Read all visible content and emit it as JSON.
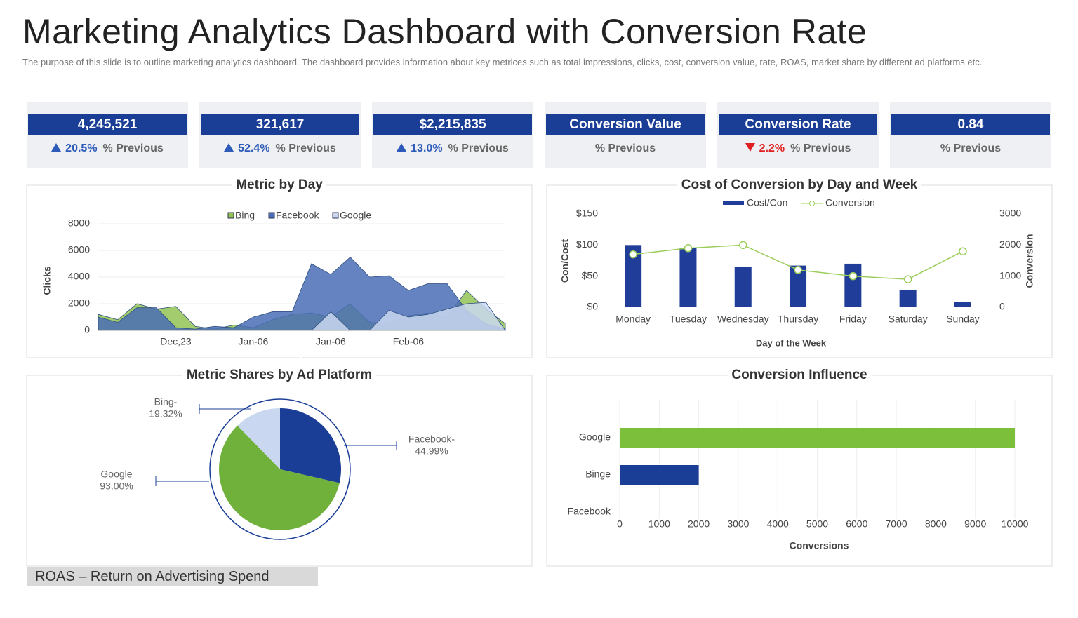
{
  "header": {
    "title": "Marketing Analytics Dashboard with Conversion Rate",
    "subtitle": "The purpose of this slide is to outline marketing analytics dashboard. The dashboard provides information about key metrices such as total impressions, clicks, cost, conversion value, rate, ROAS, market share by different ad platforms etc."
  },
  "kpis": [
    {
      "value": "4,245,521",
      "change": "20.5%",
      "trend": "up",
      "label": "% Previous"
    },
    {
      "value": "321,617",
      "change": "52.4%",
      "trend": "up",
      "label": "% Previous"
    },
    {
      "value": "$2,215,835",
      "change": "13.0%",
      "trend": "up",
      "label": "% Previous"
    },
    {
      "value": "Conversion Value",
      "label": "% Previous"
    },
    {
      "value": "Conversion Rate",
      "change": "2.2%",
      "trend": "down",
      "label": "% Previous"
    },
    {
      "value": "0.84",
      "label": "% Previous"
    }
  ],
  "chart_data": [
    {
      "type": "area",
      "title": "Metric by Day",
      "y_label": "Clicks",
      "categories": [
        null,
        null,
        null,
        null,
        "Dec,23",
        null,
        null,
        null,
        "Jan-06",
        null,
        null,
        null,
        "Jan-06",
        null,
        null,
        null,
        "Feb-06",
        null,
        null,
        null,
        null,
        null
      ],
      "series": [
        {
          "name": "Bing",
          "color": "#92c353",
          "values": [
            1200,
            800,
            2000,
            1600,
            1800,
            300,
            100,
            400,
            200,
            800,
            1200,
            1300,
            1000,
            2000,
            600,
            500,
            1100,
            1300,
            1000,
            3000,
            1600,
            500
          ]
        },
        {
          "name": "Facebook",
          "color": "#4a6db5",
          "values": [
            1000,
            600,
            1700,
            1700,
            200,
            100,
            300,
            200,
            1000,
            1400,
            1400,
            5000,
            4200,
            5500,
            4000,
            4100,
            3000,
            3500,
            3500,
            1500,
            500,
            100
          ]
        },
        {
          "name": "Google",
          "color": "#c9d7f0",
          "values": [
            0,
            0,
            0,
            0,
            0,
            0,
            0,
            0,
            0,
            0,
            0,
            0,
            1400,
            0,
            0,
            1500,
            1000,
            1200,
            1600,
            2000,
            2100,
            0
          ]
        }
      ],
      "ylim": [
        0,
        8000
      ],
      "yticks": [
        0,
        2000,
        4000,
        6000,
        8000
      ],
      "grid": true
    },
    {
      "type": "combo",
      "title": "Cost of Conversion by Day and Week",
      "x_label": "Day of the Week",
      "y_label": "Con/Cost",
      "y2_label": "Conversion",
      "categories": [
        "Monday",
        "Tuesday",
        "Wednesday",
        "Thursday",
        "Friday",
        "Saturday",
        "Sunday"
      ],
      "series": [
        {
          "name": "Cost/Con",
          "type": "bar",
          "color": "#1f3d99",
          "values": [
            100,
            95,
            65,
            67,
            70,
            28,
            8
          ]
        },
        {
          "name": "Conversion",
          "type": "line",
          "axis": "y2",
          "color": "#9acd5a",
          "values": [
            1700,
            1900,
            2000,
            1200,
            1000,
            900,
            1800
          ]
        }
      ],
      "ylim": [
        0,
        150
      ],
      "yticks": [
        {
          "value": 0,
          "label": "$0"
        },
        {
          "value": 50,
          "label": "$50"
        },
        {
          "value": 100,
          "label": "$100"
        },
        {
          "value": 150,
          "label": "$150"
        }
      ],
      "y2lim": [
        0,
        3000
      ],
      "y2ticks": [
        0,
        1000,
        2000,
        3000
      ]
    },
    {
      "type": "pie",
      "title": "Metric Shares by Ad Platform",
      "categories": [
        "Facebook-",
        "Google",
        "Bing-"
      ],
      "values": [
        44.99,
        93.0,
        19.32
      ],
      "value_labels": [
        "44.99%",
        "93.00%",
        "19.32%"
      ],
      "colors": [
        "#1a3e96",
        "#6fb13a",
        "#c9d7f0"
      ]
    },
    {
      "type": "hbar",
      "title": "Conversion Influence",
      "x_label": "Conversions",
      "categories": [
        "Google",
        "Binge",
        "Facebook"
      ],
      "values": [
        10000,
        2000,
        0
      ],
      "colors": [
        "#7cbf3a",
        "#1a3e96",
        "#1a3e96"
      ],
      "xlim": [
        0,
        10000
      ],
      "xticks": [
        0,
        1000,
        2000,
        3000,
        4000,
        5000,
        6000,
        7000,
        8000,
        9000,
        10000
      ],
      "grid": true
    }
  ],
  "footer": "ROAS – Return on Advertising Spend"
}
